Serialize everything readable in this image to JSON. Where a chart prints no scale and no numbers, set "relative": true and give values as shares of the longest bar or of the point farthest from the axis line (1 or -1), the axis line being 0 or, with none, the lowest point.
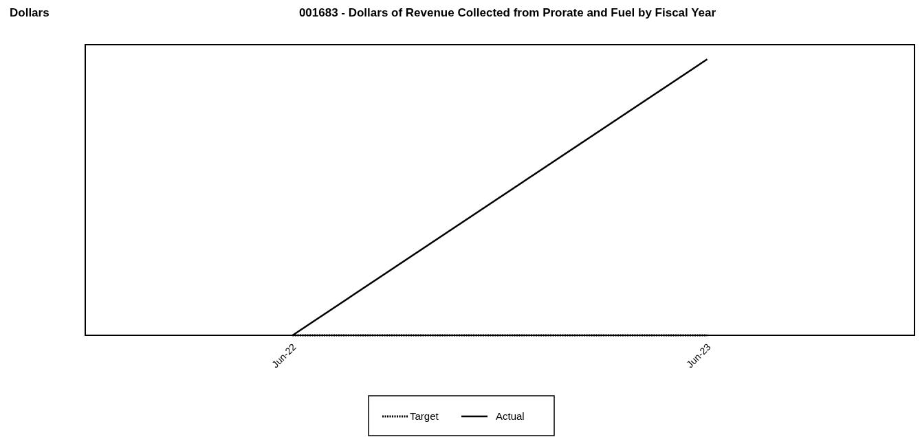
{
  "chart_data": {
    "type": "line",
    "title": "001683 - Dollars of Revenue Collected from Prorate and Fuel by Fiscal Year",
    "ylabel": "Dollars",
    "categories": [
      "Jun-22",
      "Jun-23"
    ],
    "relative": true,
    "legend": "bottom",
    "series": [
      {
        "name": "Target",
        "color": "#000000",
        "values": [
          0,
          0
        ],
        "line_style": "dotted"
      },
      {
        "name": "Actual",
        "color": "#000000",
        "values": [
          0,
          1
        ],
        "line_style": "solid"
      }
    ]
  }
}
